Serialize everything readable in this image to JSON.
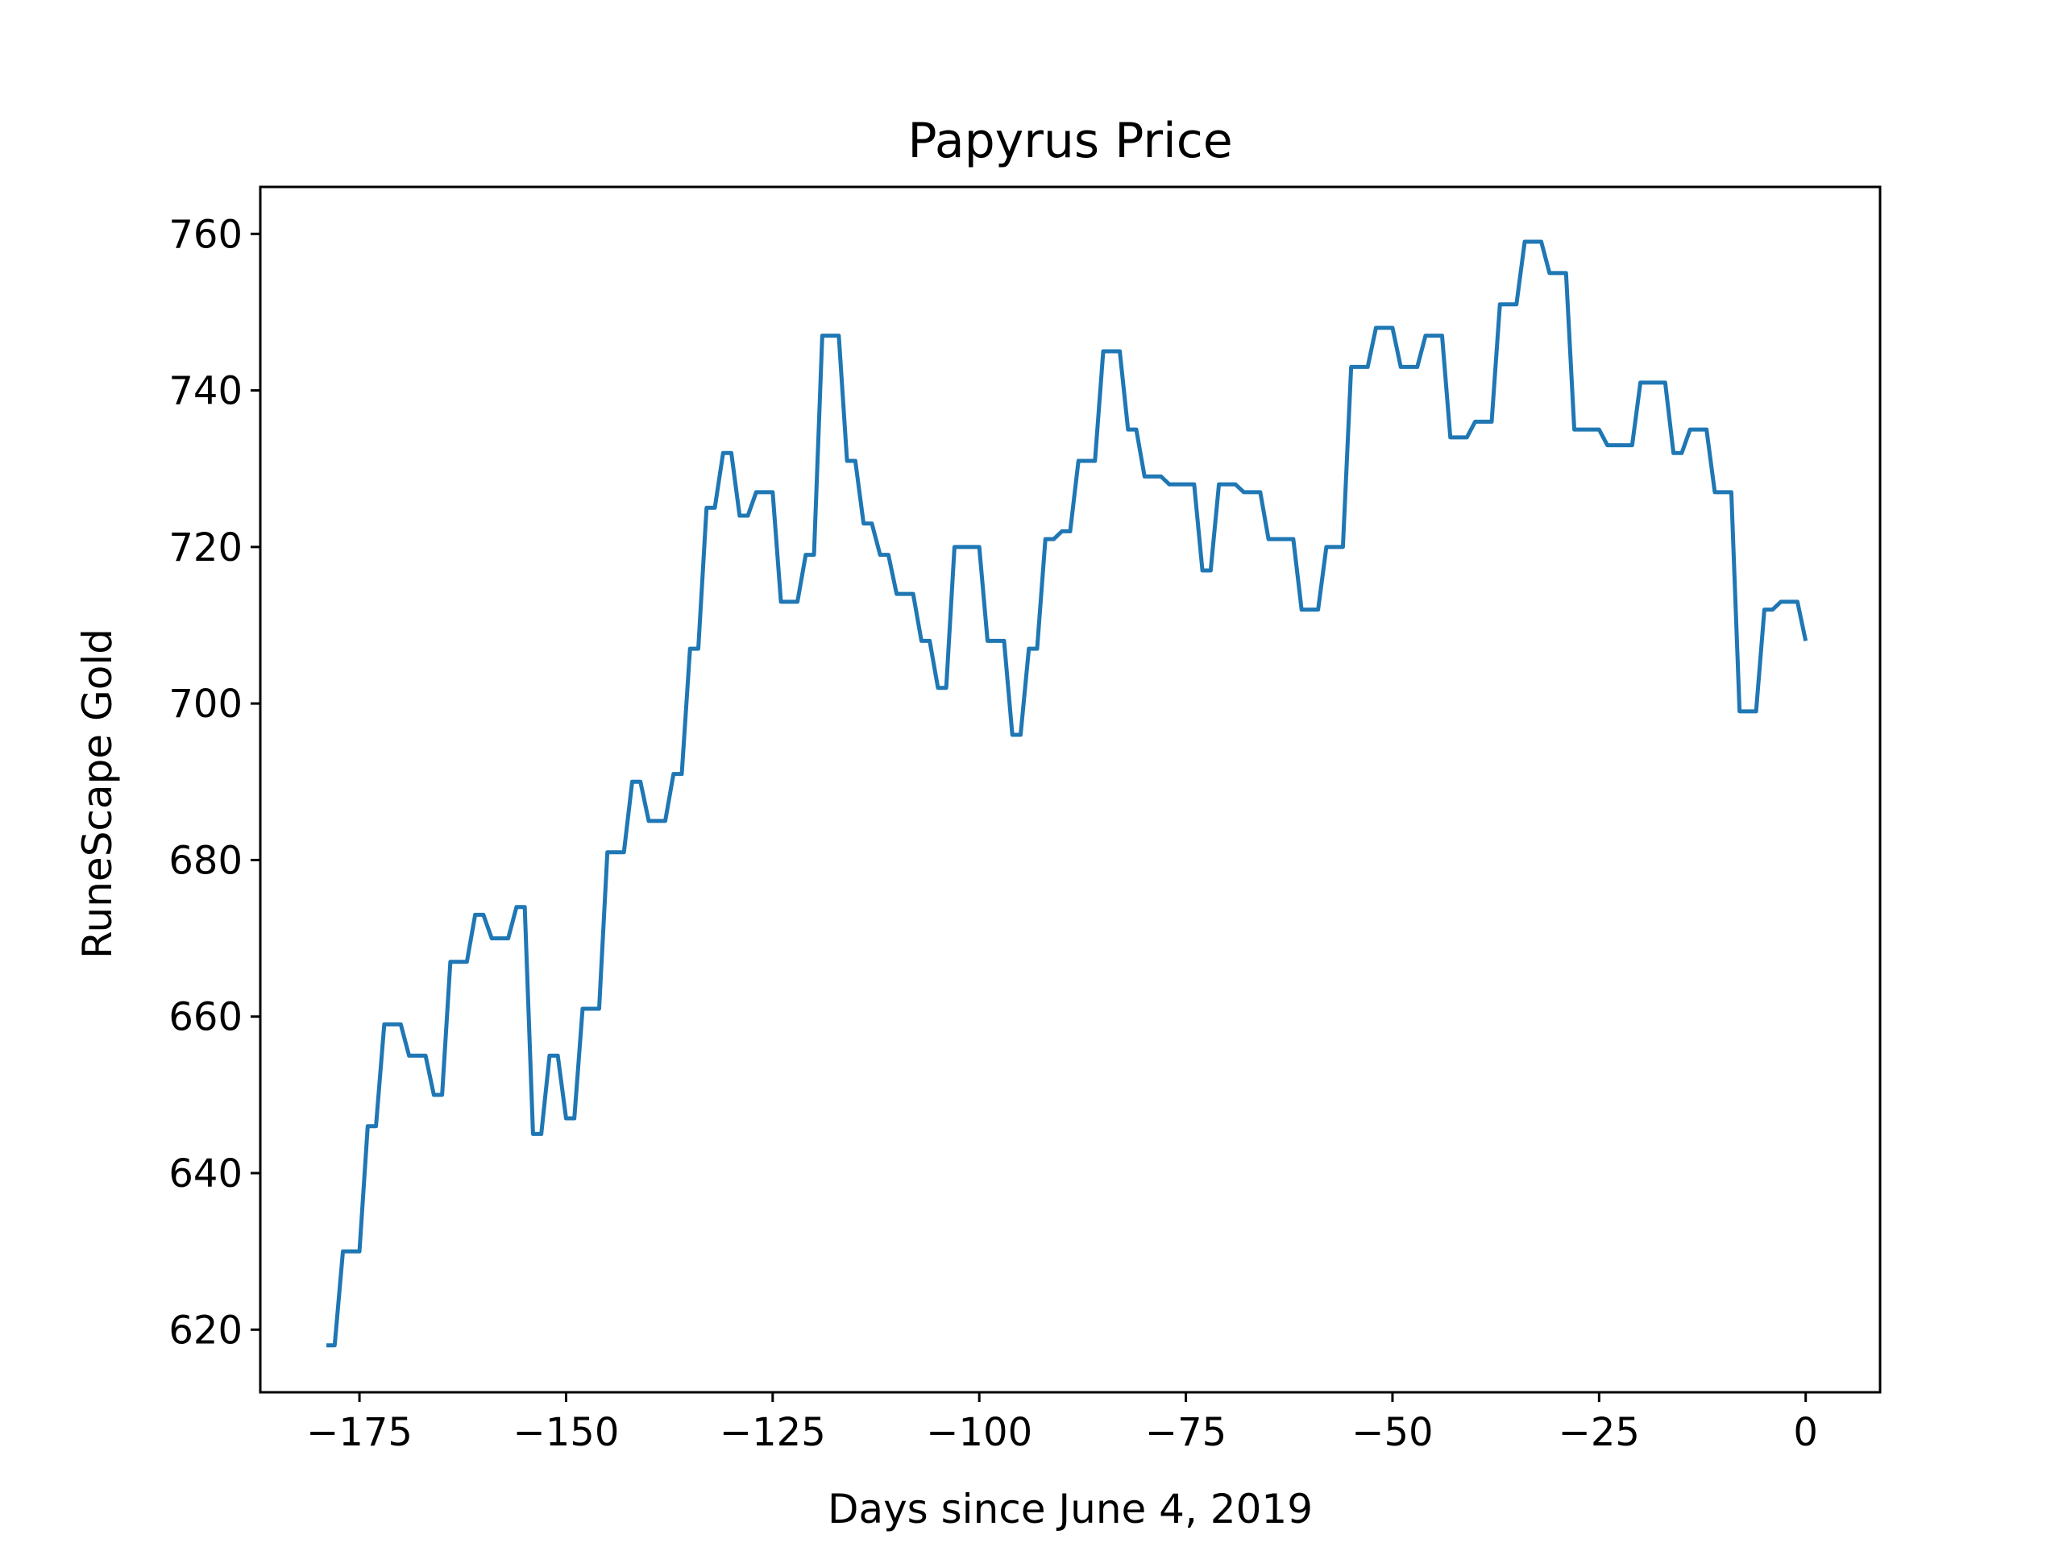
{
  "chart_data": {
    "type": "line",
    "title": "Papyrus Price",
    "xlabel": "Days since June 4, 2019",
    "ylabel": "RuneScape Gold",
    "xlim": [
      -187,
      9
    ],
    "ylim": [
      612,
      766
    ],
    "xticks": [
      -175,
      -150,
      -125,
      -100,
      -75,
      -50,
      -25,
      0
    ],
    "xtick_labels": [
      "−175",
      "−150",
      "−125",
      "−100",
      "−75",
      "−50",
      "−25",
      "0"
    ],
    "yticks": [
      620,
      640,
      660,
      680,
      700,
      720,
      740,
      760
    ],
    "ytick_labels": [
      "620",
      "640",
      "660",
      "680",
      "700",
      "720",
      "740",
      "760"
    ],
    "grid": false,
    "line_color": "#1f77b4",
    "series": [
      {
        "x": [
          -179,
          -178,
          -177,
          -176,
          -175,
          -174,
          -173,
          -172,
          -171,
          -170,
          -169,
          -168,
          -167,
          -166,
          -165,
          -164,
          -163,
          -162,
          -161,
          -160,
          -159,
          -158,
          -157,
          -156,
          -155,
          -154,
          -153,
          -152,
          -151,
          -150,
          -149,
          -148,
          -147,
          -146,
          -145,
          -144,
          -143,
          -142,
          -141,
          -140,
          -139,
          -138,
          -137,
          -136,
          -135,
          -134,
          -133,
          -132,
          -131,
          -130,
          -129,
          -128,
          -127,
          -126,
          -125,
          -124,
          -123,
          -122,
          -121,
          -120,
          -119,
          -118,
          -117,
          -116,
          -115,
          -114,
          -113,
          -112,
          -111,
          -110,
          -109,
          -108,
          -107,
          -106,
          -105,
          -104,
          -103,
          -102,
          -101,
          -100,
          -99,
          -98,
          -97,
          -96,
          -95,
          -94,
          -93,
          -92,
          -91,
          -90,
          -89,
          -88,
          -87,
          -86,
          -85,
          -84,
          -83,
          -82,
          -81,
          -80,
          -79,
          -78,
          -77,
          -76,
          -75,
          -74,
          -73,
          -72,
          -71,
          -70,
          -69,
          -68,
          -67,
          -66,
          -65,
          -64,
          -63,
          -62,
          -61,
          -60,
          -59,
          -58,
          -57,
          -56,
          -55,
          -54,
          -53,
          -52,
          -51,
          -50,
          -49,
          -48,
          -47,
          -46,
          -45,
          -44,
          -43,
          -42,
          -41,
          -40,
          -39,
          -38,
          -37,
          -36,
          -35,
          -34,
          -33,
          -32,
          -31,
          -30,
          -29,
          -28,
          -27,
          -26,
          -25,
          -24,
          -23,
          -22,
          -21,
          -20,
          -19,
          -18,
          -17,
          -16,
          -15,
          -14,
          -13,
          -12,
          -11,
          -10,
          -9,
          -8,
          -7,
          -6,
          -5,
          -4,
          -3,
          -2,
          -1,
          0
        ],
        "y": [
          618,
          618,
          630,
          630,
          630,
          646,
          646,
          659,
          659,
          659,
          655,
          655,
          655,
          650,
          650,
          667,
          667,
          667,
          673,
          673,
          670,
          670,
          670,
          674,
          674,
          645,
          645,
          655,
          655,
          647,
          647,
          661,
          661,
          661,
          681,
          681,
          681,
          690,
          690,
          685,
          685,
          685,
          691,
          691,
          707,
          707,
          725,
          725,
          732,
          732,
          724,
          724,
          727,
          727,
          727,
          713,
          713,
          713,
          719,
          719,
          747,
          747,
          747,
          731,
          731,
          723,
          723,
          719,
          719,
          714,
          714,
          714,
          708,
          708,
          702,
          702,
          720,
          720,
          720,
          720,
          708,
          708,
          708,
          696,
          696,
          707,
          707,
          721,
          721,
          722,
          722,
          731,
          731,
          731,
          745,
          745,
          745,
          735,
          735,
          729,
          729,
          729,
          728,
          728,
          728,
          728,
          717,
          717,
          728,
          728,
          728,
          727,
          727,
          727,
          721,
          721,
          721,
          721,
          712,
          712,
          712,
          720,
          720,
          720,
          743,
          743,
          743,
          748,
          748,
          748,
          743,
          743,
          743,
          747,
          747,
          747,
          734,
          734,
          734,
          736,
          736,
          736,
          751,
          751,
          751,
          759,
          759,
          759,
          755,
          755,
          755,
          735,
          735,
          735,
          735,
          733,
          733,
          733,
          733,
          741,
          741,
          741,
          741,
          732,
          732,
          735,
          735,
          735,
          727,
          727,
          727,
          699,
          699,
          699,
          712,
          712,
          713,
          713,
          713,
          708
        ]
      }
    ]
  }
}
